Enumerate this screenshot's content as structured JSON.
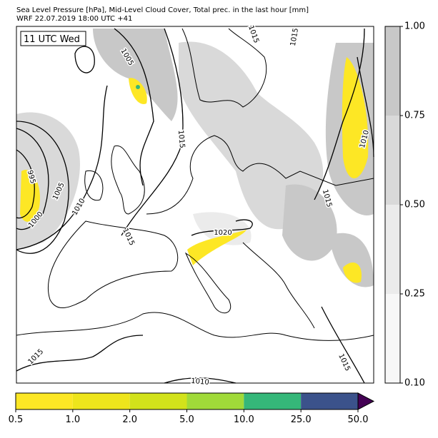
{
  "header": {
    "title_lines": [
      "Sea Level Pressure [hPa], Mid-Level Cloud Cover, Total prec. in the last hour [mm]",
      "WRF 22.07.2019 18:00 UTC +41"
    ]
  },
  "map": {
    "time_label": "11 UTC Wed",
    "contour_labels": [
      "1015",
      "1005",
      "1015",
      "995",
      "1000",
      "1005",
      "1010",
      "1015",
      "1020",
      "1015",
      "1010",
      "1015",
      "1015",
      "1010",
      "1015"
    ]
  },
  "cloud_colorbar": {
    "ticks": [
      {
        "value": 0.1,
        "label": "0.10"
      },
      {
        "value": 0.25,
        "label": "0.25"
      },
      {
        "value": 0.5,
        "label": "0.50"
      },
      {
        "value": 0.75,
        "label": "0.75"
      },
      {
        "value": 1.0,
        "label": "1.00"
      }
    ],
    "colors": [
      "#f7f7f7",
      "#ebebeb",
      "#d9d9d9",
      "#c8c8c8"
    ]
  },
  "precip_colorbar": {
    "ticks": [
      0.5,
      {
        "value": 1,
        "label": "1.0"
      },
      {
        "value": 2,
        "label": "2.0"
      },
      {
        "value": 5,
        "label": "5.0"
      },
      {
        "value": 10,
        "label": "10.0"
      },
      {
        "value": 25,
        "label": "25.0"
      },
      {
        "value": 50,
        "label": "50.0"
      }
    ],
    "colors": [
      "#fde725",
      "#eee51c",
      "#d2e21b",
      "#a0da39",
      "#35b779",
      "#3b528b"
    ],
    "extend_color": "#440154"
  }
}
